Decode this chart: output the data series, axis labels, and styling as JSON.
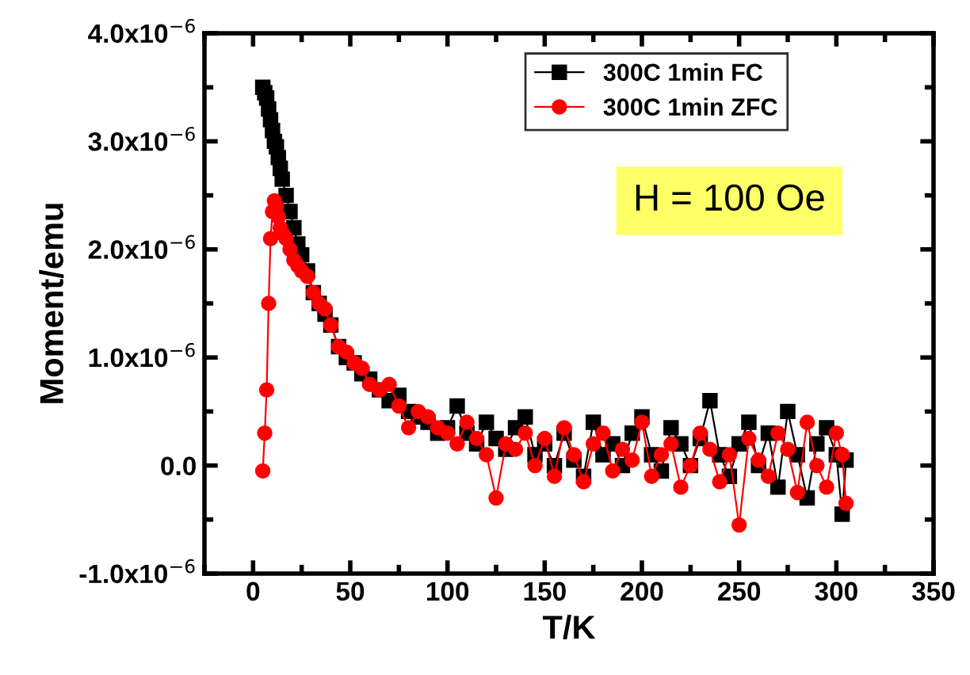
{
  "chart_data": {
    "type": "line",
    "xlabel": "T/K",
    "ylabel": "Moment/emu",
    "annotations": [
      "H = 100 Oe"
    ],
    "x": [
      5,
      6,
      7,
      8,
      9,
      10,
      11,
      12,
      13,
      14,
      15,
      17,
      19,
      21,
      23,
      25,
      28,
      31,
      34,
      37,
      40,
      44,
      48,
      52,
      56,
      60,
      65,
      70,
      75,
      80,
      85,
      90,
      95,
      100,
      105,
      110,
      115,
      120,
      125,
      130,
      135,
      140,
      145,
      150,
      155,
      160,
      165,
      170,
      175,
      180,
      185,
      190,
      195,
      200,
      205,
      210,
      215,
      220,
      225,
      230,
      235,
      240,
      245,
      250,
      255,
      260,
      265,
      270,
      275,
      280,
      285,
      290,
      295,
      300,
      303,
      305
    ],
    "series": [
      {
        "name": "300C 1min FC",
        "color": "#000000",
        "marker": "square",
        "values": [
          3.5e-06,
          3.45e-06,
          3.4e-06,
          3.3e-06,
          3.2e-06,
          3.1e-06,
          3e-06,
          2.95e-06,
          2.85e-06,
          2.75e-06,
          2.65e-06,
          2.5e-06,
          2.35e-06,
          2.2e-06,
          2.05e-06,
          1.95e-06,
          1.8e-06,
          1.6e-06,
          1.5e-06,
          1.4e-06,
          1.3e-06,
          1.1e-06,
          1e-06,
          9.5e-07,
          8.5e-07,
          8e-07,
          7e-07,
          6e-07,
          6.5e-07,
          5e-07,
          4.5e-07,
          4e-07,
          3e-07,
          3.5e-07,
          5.5e-07,
          3e-07,
          2e-07,
          4e-07,
          2.5e-07,
          1.5e-07,
          3.5e-07,
          4.5e-07,
          1e-07,
          2e-07,
          0.0,
          3e-07,
          5e-08,
          -1e-07,
          4e-07,
          1e-07,
          2e-07,
          0.0,
          3e-07,
          4.5e-07,
          1e-07,
          -5e-08,
          3.5e-07,
          2e-07,
          0.0,
          2.5e-07,
          6e-07,
          1e-07,
          -1e-07,
          2e-07,
          4e-07,
          0.0,
          3e-07,
          -2e-07,
          5e-07,
          1e-07,
          -3e-07,
          2e-07,
          3.5e-07,
          1e-07,
          -4.5e-07,
          5e-08
        ]
      },
      {
        "name": "300C 1min ZFC",
        "color": "#ff0000",
        "marker": "circle",
        "values": [
          -5e-08,
          3e-07,
          7e-07,
          1.5e-06,
          2.1e-06,
          2.35e-06,
          2.45e-06,
          2.4e-06,
          2.3e-06,
          2.2e-06,
          2.15e-06,
          2.1e-06,
          2e-06,
          1.9e-06,
          1.85e-06,
          1.8e-06,
          1.75e-06,
          1.6e-06,
          1.5e-06,
          1.45e-06,
          1.3e-06,
          1.1e-06,
          1.05e-06,
          9.5e-07,
          9e-07,
          7.5e-07,
          7e-07,
          7.5e-07,
          5.5e-07,
          3.5e-07,
          5e-07,
          4.5e-07,
          3.5e-07,
          3e-07,
          2e-07,
          4e-07,
          2.5e-07,
          1e-07,
          -3e-07,
          2e-07,
          1.5e-07,
          3e-07,
          0.0,
          2.5e-07,
          -1e-07,
          3.5e-07,
          1e-07,
          -1.5e-07,
          2e-07,
          3e-07,
          -5e-08,
          1.5e-07,
          5e-08,
          4e-07,
          -1e-07,
          1e-07,
          2e-07,
          -2e-07,
          0.0,
          3e-07,
          1.5e-07,
          -1.5e-07,
          1e-07,
          -5.5e-07,
          2.5e-07,
          5e-08,
          -1e-07,
          3e-07,
          1.5e-07,
          -2.5e-07,
          4e-07,
          0.0,
          -2e-07,
          3e-07,
          1e-07,
          -3.5e-07
        ]
      }
    ],
    "xlim": [
      -25,
      350
    ],
    "xticks": [
      0,
      50,
      100,
      150,
      200,
      250,
      300,
      350
    ],
    "ylim": [
      -1e-06,
      4e-06
    ],
    "yticks": [
      {
        "value": -1e-06,
        "label": "-1.0x10$^{−6}$"
      },
      {
        "value": 0,
        "label": "0.0"
      },
      {
        "value": 1e-06,
        "label": "1.0x10$^{−6}$"
      },
      {
        "value": 2e-06,
        "label": "2.0x10$^{−6}$"
      },
      {
        "value": 3e-06,
        "label": "3.0x10$^{−6}$"
      },
      {
        "value": 4e-06,
        "label": "4.0x10$^{−6}$"
      }
    ],
    "legend": "top",
    "line_style": "solid"
  }
}
